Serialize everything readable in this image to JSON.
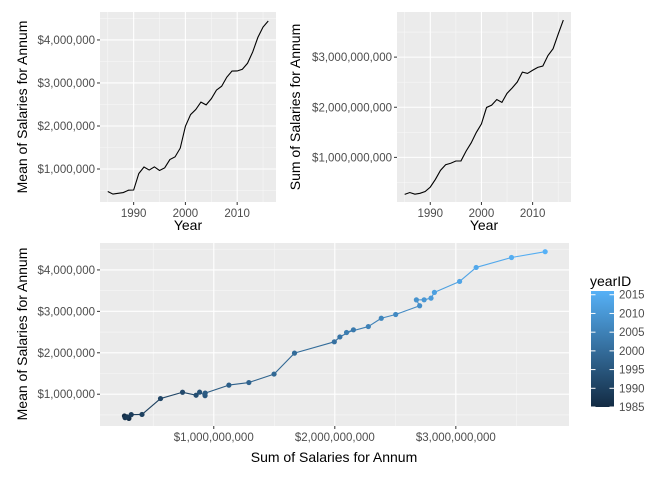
{
  "chart_data": [
    {
      "type": "line",
      "xlabel": "Year",
      "ylabel": "Mean of Salaries for Annum",
      "xlim": [
        1983.5,
        2017.5
      ],
      "ylim": [
        233000,
        4650000
      ],
      "x_ticks": [
        1990,
        2000,
        2010
      ],
      "x_tick_labels": [
        "1990",
        "2000",
        "2010"
      ],
      "y_ticks": [
        1000000,
        2000000,
        3000000,
        4000000
      ],
      "y_tick_labels": [
        "$1,000,000",
        "$2,000,000",
        "$3,000,000",
        "$4,000,000"
      ],
      "grid": true,
      "series": [
        {
          "x": [
            1985,
            1986,
            1987,
            1988,
            1989,
            1990,
            1991,
            1992,
            1993,
            1994,
            1995,
            1996,
            1997,
            1998,
            1999,
            2000,
            2001,
            2002,
            2003,
            2004,
            2005,
            2006,
            2007,
            2008,
            2009,
            2010,
            2011,
            2012,
            2013,
            2014,
            2015,
            2016
          ],
          "values": [
            476000,
            417000,
            434000,
            453000,
            507000,
            512000,
            895000,
            1047000,
            976000,
            1050000,
            965000,
            1027000,
            1220000,
            1282000,
            1486000,
            1992000,
            2265000,
            2383000,
            2555000,
            2490000,
            2633000,
            2834000,
            2924000,
            3136000,
            3277000,
            3279000,
            3319000,
            3458000,
            3722000,
            4060000,
            4300000,
            4440000
          ]
        }
      ]
    },
    {
      "type": "line",
      "xlabel": "Year",
      "ylabel": "Sum of Salaries for Annum",
      "xlim": [
        1983.5,
        2017.5
      ],
      "ylim": [
        110000000,
        3900000000
      ],
      "x_ticks": [
        1990,
        2000,
        2010
      ],
      "x_tick_labels": [
        "1990",
        "2000",
        "2010"
      ],
      "y_ticks": [
        1000000000,
        2000000000,
        3000000000
      ],
      "y_tick_labels": [
        "$1,000,000,000",
        "$2,000,000,000",
        "$3,000,000,000"
      ],
      "grid": true,
      "series": [
        {
          "x": [
            1985,
            1986,
            1987,
            1988,
            1989,
            1990,
            1991,
            1992,
            1993,
            1994,
            1995,
            1996,
            1997,
            1998,
            1999,
            2000,
            2001,
            2002,
            2003,
            2004,
            2005,
            2006,
            2007,
            2008,
            2009,
            2010,
            2011,
            2012,
            2013,
            2014,
            2015,
            2016
          ],
          "values": [
            262000000,
            299000000,
            267000000,
            283000000,
            318000000,
            407000000,
            560000000,
            742000000,
            854000000,
            883000000,
            928000000,
            929000000,
            1125000000,
            1290000000,
            1498000000,
            1667000000,
            1996000000,
            2042000000,
            2154000000,
            2097000000,
            2277000000,
            2384000000,
            2503000000,
            2701000000,
            2674000000,
            2738000000,
            2795000000,
            2823000000,
            3031000000,
            3168000000,
            3460000000,
            3738000000
          ]
        }
      ]
    },
    {
      "type": "scatter",
      "xlabel": "Sum of Salaries for Annum",
      "ylabel": "Mean of Salaries for Annum",
      "xlim": [
        60000000,
        3935000000
      ],
      "ylim": [
        233000,
        4650000
      ],
      "x_ticks": [
        1000000000,
        2000000000,
        3000000000
      ],
      "x_tick_labels": [
        "$1,000,000,000",
        "$2,000,000,000",
        "$3,000,000,000"
      ],
      "y_ticks": [
        1000000,
        2000000,
        3000000,
        4000000
      ],
      "y_tick_labels": [
        "$1,000,000",
        "$2,000,000",
        "$3,000,000",
        "$4,000,000"
      ],
      "grid": true,
      "connected": true,
      "color_by": "yearID",
      "legend": {
        "title": "yearID",
        "placement": "right",
        "range": [
          1985,
          2016
        ],
        "ticks": [
          2015,
          2010,
          2005,
          2000,
          1995,
          1990,
          1985
        ],
        "tick_labels": [
          "2015",
          "2010",
          "2005",
          "2000",
          "1995",
          "1990",
          "1985"
        ],
        "color_low": "#132B43",
        "color_high": "#56B1F7"
      },
      "series": [
        {
          "year": [
            1985,
            1986,
            1987,
            1988,
            1989,
            1990,
            1991,
            1992,
            1993,
            1994,
            1995,
            1996,
            1997,
            1998,
            1999,
            2000,
            2001,
            2002,
            2003,
            2004,
            2005,
            2006,
            2007,
            2008,
            2009,
            2010,
            2011,
            2012,
            2013,
            2014,
            2015,
            2016
          ],
          "x": [
            262000000,
            299000000,
            267000000,
            283000000,
            318000000,
            407000000,
            560000000,
            742000000,
            854000000,
            883000000,
            928000000,
            929000000,
            1125000000,
            1290000000,
            1498000000,
            1667000000,
            1996000000,
            2042000000,
            2154000000,
            2097000000,
            2277000000,
            2384000000,
            2503000000,
            2701000000,
            2674000000,
            2738000000,
            2795000000,
            2823000000,
            3031000000,
            3168000000,
            3460000000,
            3738000000
          ],
          "y": [
            476000,
            417000,
            434000,
            453000,
            507000,
            512000,
            895000,
            1047000,
            976000,
            1050000,
            965000,
            1027000,
            1220000,
            1282000,
            1486000,
            1992000,
            2265000,
            2383000,
            2555000,
            2490000,
            2633000,
            2834000,
            2924000,
            3136000,
            3277000,
            3279000,
            3319000,
            3458000,
            3722000,
            4060000,
            4300000,
            4440000
          ]
        }
      ]
    }
  ]
}
